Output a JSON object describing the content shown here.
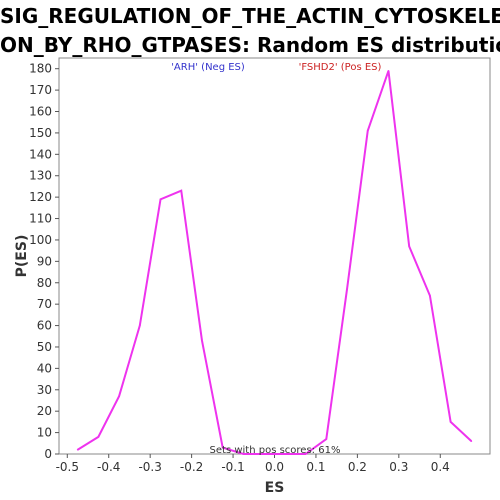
{
  "chart_data": {
    "type": "line",
    "title_line1": "SIG_REGULATION_OF_THE_ACTIN_CYTOSKELET",
    "title_line2": "ON_BY_RHO_GTPASES: Random ES distribution",
    "xlabel": "ES",
    "ylabel": "P(ES)",
    "xlim": [
      -0.52,
      0.52
    ],
    "ylim": [
      0,
      185
    ],
    "x_ticks": [
      -0.5,
      -0.4,
      -0.3,
      -0.2,
      -0.1,
      0.0,
      0.1,
      0.2,
      0.3,
      0.4
    ],
    "x_tick_labels": [
      "-0.5",
      "-0.4",
      "-0.3",
      "-0.2",
      "-0.1",
      "0.0",
      "0.1",
      "0.2",
      "0.3",
      "0.4"
    ],
    "y_ticks": [
      0,
      10,
      20,
      30,
      40,
      50,
      60,
      70,
      80,
      90,
      100,
      110,
      120,
      130,
      140,
      150,
      160,
      170,
      180
    ],
    "grid": false,
    "series": [
      {
        "color": "#ee33ee",
        "x": [
          -0.475,
          -0.425,
          -0.375,
          -0.325,
          -0.275,
          -0.225,
          -0.175,
          -0.125,
          -0.075,
          -0.025,
          0.025,
          0.075,
          0.125,
          0.175,
          0.225,
          0.275,
          0.325,
          0.375,
          0.425,
          0.475
        ],
        "y": [
          2,
          8,
          27,
          60,
          119,
          123,
          53,
          3,
          0,
          0,
          0,
          0,
          7,
          77,
          151,
          179,
          97,
          74,
          15,
          6
        ]
      }
    ],
    "annotations": {
      "neg_label": "'ARH' (Neg ES)",
      "neg_color": "#3333cc",
      "pos_label": "'FSHD2' (Pos ES)",
      "pos_color": "#cc2222",
      "bottom_text": "Sets with pos scores: 61%",
      "bottom_color": "#333333"
    }
  }
}
